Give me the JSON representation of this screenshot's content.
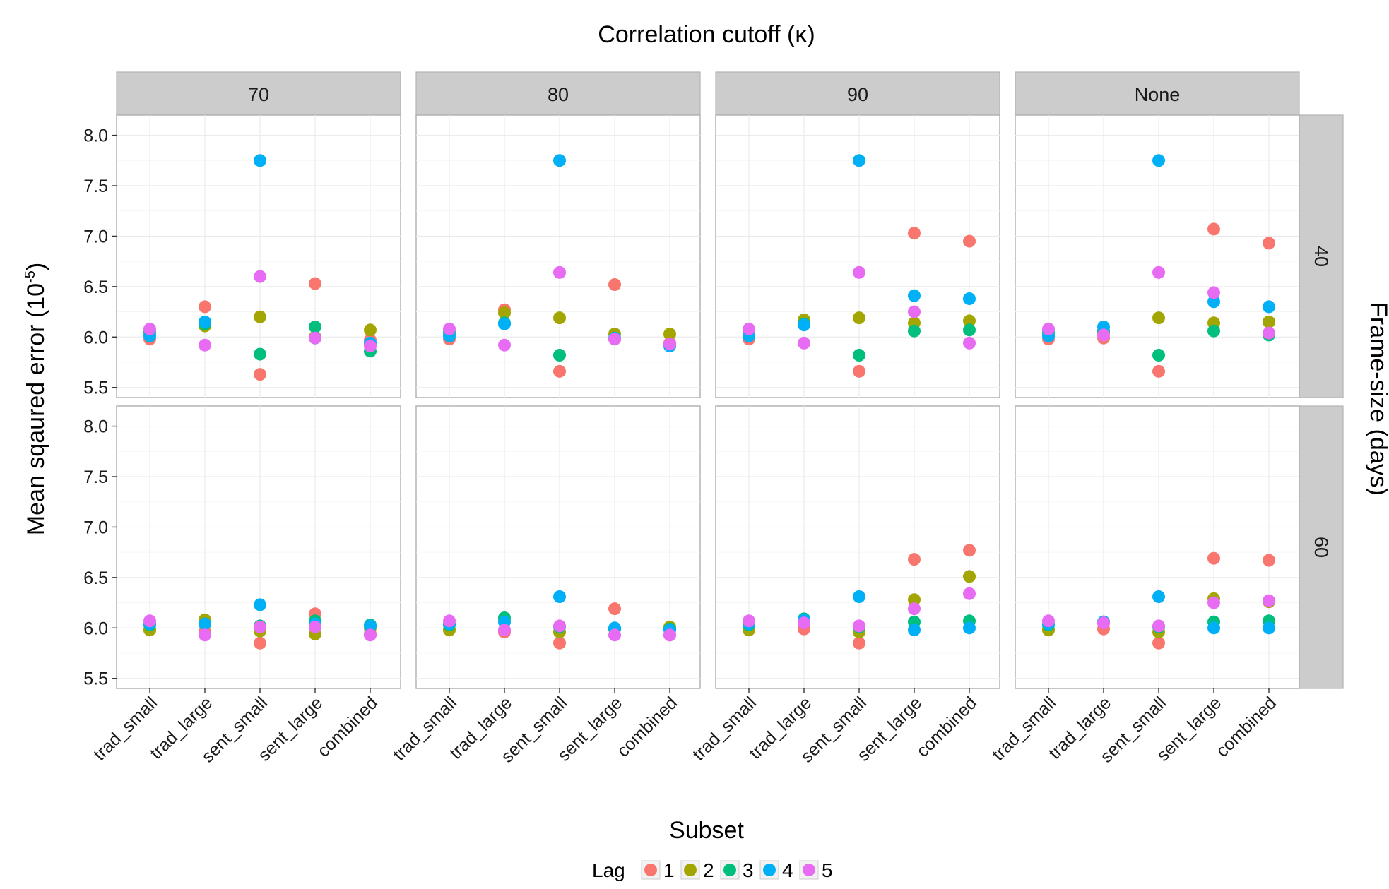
{
  "chart_data": {
    "type": "scatter",
    "title": "Correlation cutoff (κ)",
    "xlabel": "Subset",
    "ylabel_main": "Mean sqaured error ",
    "ylabel_unit_base": "(10",
    "ylabel_unit_exp": "-5",
    "ylabel_unit_close": ")",
    "right_label": "Frame-size (days)",
    "categories": [
      "trad_small",
      "trad_large",
      "sent_small",
      "sent_large",
      "combined"
    ],
    "col_facets": [
      "70",
      "80",
      "90",
      "None"
    ],
    "row_facets": [
      "40",
      "60"
    ],
    "ylim": [
      5.4,
      8.2
    ],
    "yticks": [
      "5.5",
      "6.0",
      "6.5",
      "7.0",
      "7.5",
      "8.0"
    ],
    "grid": true,
    "legend": {
      "title": "Lag",
      "position": "bottom",
      "entries": [
        "1",
        "2",
        "3",
        "4",
        "5"
      ]
    },
    "colors": [
      "#F8766D",
      "#A3A500",
      "#00BF7D",
      "#00B0F6",
      "#E76BF3"
    ],
    "series": [
      {
        "name": "1",
        "values": {
          "70|40": [
            5.98,
            6.3,
            5.63,
            6.53,
            5.97
          ],
          "80|40": [
            5.98,
            6.27,
            5.66,
            6.52,
            5.94
          ],
          "90|40": [
            5.98,
            6.15,
            5.66,
            7.03,
            6.95
          ],
          "None|40": [
            5.98,
            5.99,
            5.66,
            7.07,
            6.93
          ],
          "70|60": [
            5.98,
            5.96,
            5.85,
            6.14,
            5.94
          ],
          "80|60": [
            5.98,
            5.96,
            5.85,
            6.19,
            5.93
          ],
          "90|60": [
            5.98,
            5.99,
            5.85,
            6.68,
            6.77
          ],
          "None|60": [
            5.98,
            5.99,
            5.85,
            6.69,
            6.67
          ]
        }
      },
      {
        "name": "2",
        "values": {
          "70|40": [
            6.02,
            6.11,
            6.2,
            6.0,
            6.07
          ],
          "80|40": [
            6.02,
            6.24,
            6.19,
            6.03,
            6.03
          ],
          "90|40": [
            6.02,
            6.17,
            6.19,
            6.14,
            6.16
          ],
          "None|40": [
            6.02,
            6.04,
            6.19,
            6.14,
            6.15
          ],
          "70|60": [
            5.98,
            6.08,
            5.97,
            5.94,
            6.0
          ],
          "80|60": [
            5.98,
            6.09,
            5.96,
            5.99,
            6.01
          ],
          "90|60": [
            5.98,
            6.06,
            5.96,
            6.28,
            6.51
          ],
          "None|60": [
            5.98,
            6.05,
            5.96,
            6.29,
            6.26
          ]
        }
      },
      {
        "name": "3",
        "values": {
          "70|40": [
            6.05,
            6.13,
            5.83,
            6.1,
            5.86
          ],
          "80|40": [
            6.05,
            6.14,
            5.82,
            5.98,
            5.92
          ],
          "90|40": [
            6.05,
            6.13,
            5.82,
            6.06,
            6.07
          ],
          "None|40": [
            6.05,
            6.06,
            5.82,
            6.06,
            6.02
          ],
          "70|60": [
            6.03,
            6.04,
            6.02,
            6.07,
            6.03
          ],
          "80|60": [
            6.03,
            6.1,
            6.01,
            5.99,
            5.99
          ],
          "90|60": [
            6.03,
            6.09,
            6.01,
            6.06,
            6.07
          ],
          "None|60": [
            6.03,
            6.06,
            6.01,
            6.06,
            6.07
          ]
        }
      },
      {
        "name": "4",
        "values": {
          "70|40": [
            6.01,
            6.15,
            7.75,
            5.99,
            5.94
          ],
          "80|40": [
            6.01,
            6.13,
            7.75,
            5.99,
            5.91
          ],
          "90|40": [
            6.01,
            6.12,
            7.75,
            6.41,
            6.38
          ],
          "None|40": [
            6.01,
            6.1,
            7.75,
            6.35,
            6.3
          ],
          "70|60": [
            6.04,
            6.04,
            6.23,
            6.04,
            6.02
          ],
          "80|60": [
            6.04,
            6.06,
            6.31,
            6.0,
            5.98
          ],
          "90|60": [
            6.04,
            6.08,
            6.31,
            5.98,
            6.0
          ],
          "None|60": [
            6.04,
            6.06,
            6.31,
            6.0,
            6.0
          ]
        }
      },
      {
        "name": "5",
        "values": {
          "70|40": [
            6.08,
            5.92,
            6.6,
            5.99,
            5.91
          ],
          "80|40": [
            6.08,
            5.92,
            6.64,
            5.98,
            5.93
          ],
          "90|40": [
            6.08,
            5.94,
            6.64,
            6.25,
            5.94
          ],
          "None|40": [
            6.08,
            6.02,
            6.64,
            6.44,
            6.04
          ],
          "70|60": [
            6.07,
            5.93,
            6.01,
            6.01,
            5.93
          ],
          "80|60": [
            6.07,
            5.98,
            6.02,
            5.93,
            5.93
          ],
          "90|60": [
            6.07,
            6.05,
            6.02,
            6.19,
            6.34
          ],
          "None|60": [
            6.07,
            6.05,
            6.02,
            6.25,
            6.27
          ]
        }
      }
    ]
  }
}
